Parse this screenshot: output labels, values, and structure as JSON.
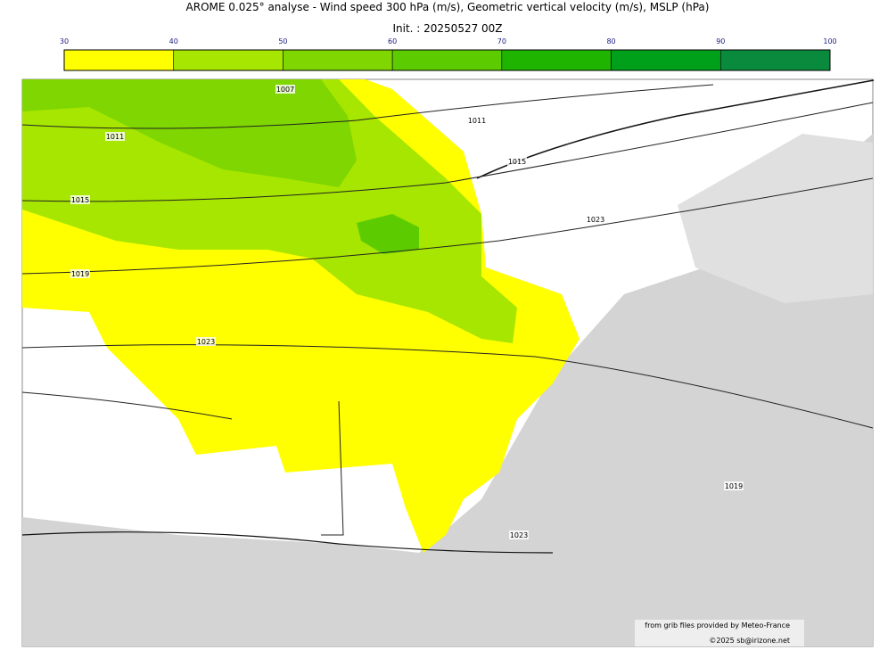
{
  "header": {
    "title": "AROME 0.025° analyse - Wind speed 300 hPa (m/s), Geometric vertical velocity (m/s), MSLP (hPa)",
    "subtitle": "Init. : 20250527 00Z"
  },
  "colorbar": {
    "ticks": [
      30,
      40,
      50,
      60,
      70,
      80,
      90,
      100
    ],
    "colors": [
      "#ffff00",
      "#a6e600",
      "#7fd600",
      "#5ccc00",
      "#1fb400",
      "#00a01a",
      "#0a8a3c",
      "#0a7450"
    ]
  },
  "contour_labels": [
    "1007",
    "1011",
    "1011",
    "1015",
    "1015",
    "1023",
    "1019",
    "1023",
    "1019",
    "1023"
  ],
  "credits": [
    "from grib files provided by Meteo-France",
    "©2025 sb@irizone.net"
  ]
}
